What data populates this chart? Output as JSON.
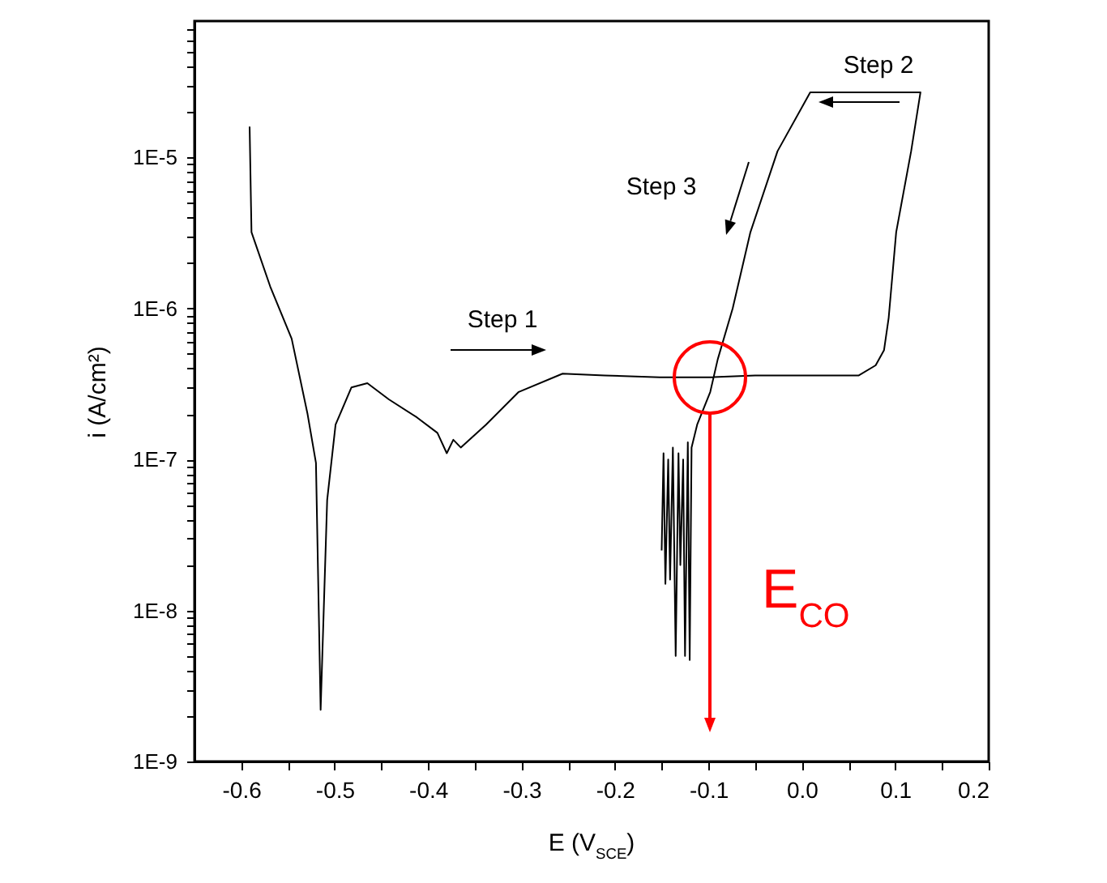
{
  "chart_data": {
    "type": "line",
    "xlabel": "E (V$_{SCE}$)",
    "ylabel": "i (A/cm²)",
    "log": "y",
    "xlim": [
      -0.65,
      0.2
    ],
    "xticks": [
      -0.6,
      {
        "value": -0.55,
        "label": null
      },
      -0.5,
      {
        "value": -0.45,
        "label": null
      },
      -0.4,
      {
        "value": -0.35,
        "label": null
      },
      -0.3,
      {
        "value": -0.25,
        "label": null
      },
      -0.2,
      {
        "value": -0.15,
        "label": null
      },
      -0.1,
      {
        "value": -0.05,
        "label": null
      },
      {
        "value": 0,
        "label": "0.0"
      },
      {
        "value": 0.05,
        "label": null
      },
      0.1,
      {
        "value": 0.15,
        "label": null
      },
      0.2
    ],
    "ylim": [
      1e-09,
      8e-05
    ],
    "yticks": [
      {
        "value": 1e-09,
        "label": "1E-9"
      },
      {
        "value": 2e-09,
        "label": null
      },
      {
        "value": 3e-09,
        "label": null
      },
      {
        "value": 4e-09,
        "label": null
      },
      {
        "value": 5e-09,
        "label": null
      },
      {
        "value": 6e-09,
        "label": null
      },
      {
        "value": 7e-09,
        "label": null
      },
      {
        "value": 8e-09,
        "label": null
      },
      {
        "value": 9e-09,
        "label": null
      },
      {
        "value": 1e-08,
        "label": "1E-8"
      },
      {
        "value": 2e-08,
        "label": null
      },
      {
        "value": 3e-08,
        "label": null
      },
      {
        "value": 4e-08,
        "label": null
      },
      {
        "value": 5e-08,
        "label": null
      },
      {
        "value": 6e-08,
        "label": null
      },
      {
        "value": 7e-08,
        "label": null
      },
      {
        "value": 8e-08,
        "label": null
      },
      {
        "value": 9e-08,
        "label": null
      },
      {
        "value": 1e-07,
        "label": "1E-7"
      },
      {
        "value": 2e-07,
        "label": null
      },
      {
        "value": 3e-07,
        "label": null
      },
      {
        "value": 4e-07,
        "label": null
      },
      {
        "value": 5e-07,
        "label": null
      },
      {
        "value": 6e-07,
        "label": null
      },
      {
        "value": 7e-07,
        "label": null
      },
      {
        "value": 8e-07,
        "label": null
      },
      {
        "value": 9e-07,
        "label": null
      },
      {
        "value": 1e-06,
        "label": "1E-6"
      },
      {
        "value": 2e-06,
        "label": null
      },
      {
        "value": 3e-06,
        "label": null
      },
      {
        "value": 4e-06,
        "label": null
      },
      {
        "value": 5e-06,
        "label": null
      },
      {
        "value": 6e-06,
        "label": null
      },
      {
        "value": 7e-06,
        "label": null
      },
      {
        "value": 8e-06,
        "label": null
      },
      {
        "value": 9e-06,
        "label": null
      },
      {
        "value": 1e-05,
        "label": "1E-5"
      },
      {
        "value": 2e-05,
        "label": null
      },
      {
        "value": 3e-05,
        "label": null
      },
      {
        "value": 4e-05,
        "label": null
      },
      {
        "value": 5e-05,
        "label": null
      },
      {
        "value": 6e-05,
        "label": null
      },
      {
        "value": 7e-05,
        "label": null
      }
    ],
    "x": [
      -0.591,
      -0.589,
      -0.569,
      -0.546,
      -0.529,
      -0.52,
      -0.515,
      -0.508,
      -0.499,
      -0.482,
      -0.465,
      -0.442,
      -0.412,
      -0.39,
      -0.38,
      -0.373,
      -0.365,
      -0.338,
      -0.303,
      -0.256,
      -0.211,
      -0.152,
      -0.1,
      -0.05,
      0.0,
      0.061,
      0.079,
      0.088,
      0.093,
      0.101,
      0.117,
      0.127,
      0.009,
      -0.026,
      -0.055,
      -0.074,
      -0.09,
      -0.098,
      -0.112,
      -0.118,
      -0.12,
      -0.122,
      -0.125,
      -0.127,
      -0.13,
      -0.132,
      -0.135,
      -0.138,
      -0.141,
      -0.143,
      -0.146,
      -0.148,
      -0.15
    ],
    "series": [
      {
        "color": "#000000",
        "values": [
          1.6e-05,
          3.2e-06,
          1.4e-06,
          6.3e-07,
          2e-07,
          9.5e-08,
          2.2e-09,
          5.4e-08,
          1.7e-07,
          3e-07,
          3.2e-07,
          2.5e-07,
          1.9e-07,
          1.5e-07,
          1.1e-07,
          1.35e-07,
          1.2e-07,
          1.7e-07,
          2.8e-07,
          3.7e-07,
          3.6e-07,
          3.5e-07,
          3.5e-07,
          3.6e-07,
          3.6e-07,
          3.6e-07,
          4.2e-07,
          5.3e-07,
          8.7e-07,
          3.2e-06,
          1.1e-05,
          2.7e-05,
          2.7e-05,
          1.1e-05,
          3.2e-06,
          1e-06,
          4.6e-07,
          2.8e-07,
          1.7e-07,
          1.2e-07,
          4.7e-09,
          1.3e-07,
          5e-09,
          1e-07,
          2e-08,
          1.1e-07,
          5e-09,
          1.2e-07,
          1.6e-08,
          1e-07,
          1.5e-08,
          1.1e-07,
          2.5e-08
        ]
      }
    ],
    "annotations": [
      "Step 1",
      "Step 2",
      "Step 3",
      "E$_{CO}$"
    ]
  }
}
